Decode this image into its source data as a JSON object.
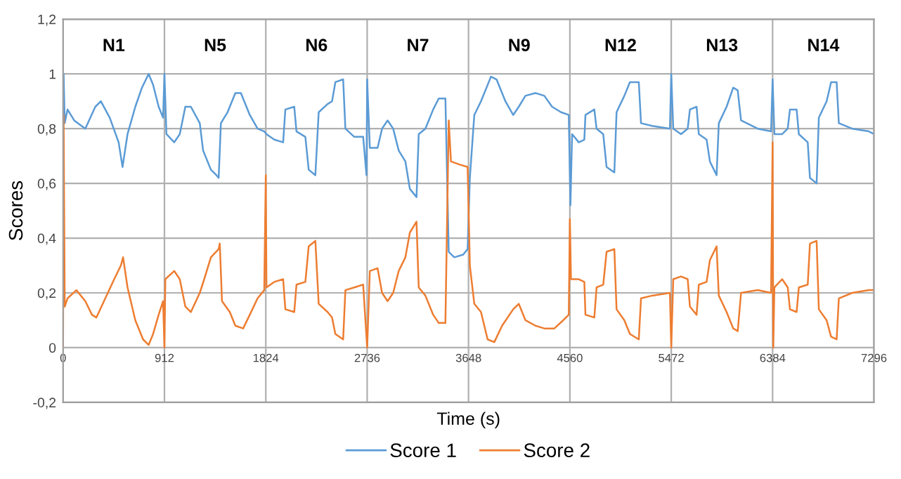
{
  "chart_data": {
    "type": "line",
    "xlabel": "Time (s)",
    "ylabel": "Scores",
    "xlim": [
      0,
      7296
    ],
    "xticks": [
      0,
      912,
      1824,
      2736,
      3648,
      4560,
      5472,
      6384,
      7296
    ],
    "ylim": [
      -0.2,
      1.2
    ],
    "yticks": [
      {
        "value": -0.2,
        "label": "-0,2"
      },
      0,
      {
        "value": 0.2,
        "label": "0,2"
      },
      {
        "value": 0.4,
        "label": "0,4"
      },
      {
        "value": 0.6,
        "label": "0,6"
      },
      {
        "value": 0.8,
        "label": "0,8"
      },
      1,
      {
        "value": 1.2,
        "label": "1,2"
      }
    ],
    "grid": true,
    "legend": "bottom",
    "marker": "none",
    "line_style": "solid",
    "annotations": [
      "N1",
      "N5",
      "N6",
      "N7",
      "N9",
      "N12",
      "N13",
      "N14"
    ],
    "series": [
      {
        "name": "Score 1",
        "color": "#5b9bd5",
        "x": [
          0,
          5,
          15,
          40,
          100,
          200,
          290,
          340,
          420,
          500,
          535,
          580,
          650,
          710,
          770,
          810,
          860,
          900,
          912,
          930,
          1000,
          1050,
          1100,
          1150,
          1230,
          1260,
          1330,
          1380,
          1400,
          1420,
          1480,
          1550,
          1600,
          1680,
          1750,
          1810,
          1830,
          1900,
          1980,
          2000,
          2080,
          2100,
          2180,
          2210,
          2270,
          2300,
          2380,
          2420,
          2450,
          2520,
          2540,
          2620,
          2700,
          2730,
          2736,
          2760,
          2830,
          2870,
          2920,
          2970,
          3020,
          3080,
          3120,
          3180,
          3200,
          3260,
          3330,
          3380,
          3440,
          3470,
          3520,
          3600,
          3640,
          3660,
          3700,
          3760,
          3850,
          3900,
          3980,
          4050,
          4100,
          4160,
          4250,
          4330,
          4400,
          4480,
          4550,
          4565,
          4580,
          4640,
          4690,
          4700,
          4780,
          4800,
          4860,
          4890,
          4960,
          4980,
          5050,
          5100,
          5180,
          5200,
          5300,
          5460,
          5472,
          5490,
          5560,
          5620,
          5640,
          5700,
          5720,
          5790,
          5820,
          5880,
          5900,
          5970,
          6030,
          6070,
          6100,
          6250,
          6370,
          6384,
          6400,
          6470,
          6520,
          6540,
          6600,
          6620,
          6700,
          6720,
          6780,
          6800,
          6870,
          6910,
          6960,
          6980,
          7100,
          7250,
          7296
        ],
        "values": [
          0.85,
          1.0,
          0.82,
          0.87,
          0.83,
          0.8,
          0.88,
          0.9,
          0.84,
          0.75,
          0.66,
          0.78,
          0.88,
          0.95,
          1.0,
          0.96,
          0.88,
          0.84,
          1.0,
          0.78,
          0.75,
          0.78,
          0.88,
          0.88,
          0.82,
          0.72,
          0.65,
          0.63,
          0.62,
          0.82,
          0.86,
          0.93,
          0.93,
          0.85,
          0.8,
          0.79,
          0.78,
          0.76,
          0.75,
          0.87,
          0.88,
          0.79,
          0.77,
          0.65,
          0.63,
          0.86,
          0.89,
          0.9,
          0.97,
          0.98,
          0.8,
          0.77,
          0.77,
          0.63,
          0.98,
          0.73,
          0.73,
          0.8,
          0.83,
          0.8,
          0.72,
          0.68,
          0.58,
          0.55,
          0.78,
          0.8,
          0.87,
          0.91,
          0.91,
          0.35,
          0.33,
          0.34,
          0.36,
          0.62,
          0.85,
          0.9,
          0.99,
          0.98,
          0.9,
          0.85,
          0.88,
          0.92,
          0.93,
          0.92,
          0.88,
          0.86,
          0.85,
          0.52,
          0.78,
          0.75,
          0.76,
          0.85,
          0.87,
          0.8,
          0.78,
          0.66,
          0.64,
          0.86,
          0.92,
          0.97,
          0.97,
          0.82,
          0.81,
          0.8,
          1.0,
          0.8,
          0.78,
          0.8,
          0.87,
          0.88,
          0.78,
          0.76,
          0.68,
          0.63,
          0.82,
          0.88,
          0.95,
          0.94,
          0.83,
          0.8,
          0.79,
          0.98,
          0.78,
          0.78,
          0.8,
          0.87,
          0.87,
          0.78,
          0.75,
          0.62,
          0.6,
          0.84,
          0.9,
          0.97,
          0.97,
          0.82,
          0.8,
          0.79,
          0.78
        ]
      },
      {
        "name": "Score 2",
        "color": "#ed7d31",
        "x": [
          0,
          5,
          15,
          40,
          120,
          200,
          260,
          300,
          380,
          460,
          520,
          540,
          580,
          650,
          720,
          770,
          810,
          860,
          900,
          912,
          920,
          1000,
          1050,
          1100,
          1150,
          1230,
          1270,
          1330,
          1400,
          1410,
          1430,
          1500,
          1550,
          1620,
          1680,
          1750,
          1810,
          1824,
          1830,
          1900,
          1980,
          2000,
          2080,
          2100,
          2180,
          2210,
          2270,
          2300,
          2380,
          2420,
          2450,
          2520,
          2540,
          2620,
          2700,
          2736,
          2760,
          2830,
          2870,
          2920,
          2970,
          3020,
          3080,
          3120,
          3180,
          3200,
          3260,
          3330,
          3380,
          3440,
          3470,
          3490,
          3560,
          3640,
          3660,
          3700,
          3760,
          3820,
          3880,
          3950,
          4050,
          4100,
          4160,
          4250,
          4330,
          4420,
          4500,
          4550,
          4560,
          4570,
          4640,
          4690,
          4700,
          4780,
          4800,
          4860,
          4890,
          4960,
          4980,
          5050,
          5100,
          5180,
          5200,
          5300,
          5460,
          5472,
          5490,
          5560,
          5620,
          5640,
          5700,
          5720,
          5790,
          5820,
          5880,
          5900,
          5970,
          6030,
          6070,
          6100,
          6250,
          6370,
          6384,
          6390,
          6400,
          6470,
          6520,
          6540,
          6600,
          6620,
          6700,
          6720,
          6780,
          6800,
          6870,
          6910,
          6960,
          6980,
          7100,
          7250,
          7296
        ],
        "values": [
          0.0,
          0.85,
          0.15,
          0.18,
          0.21,
          0.17,
          0.12,
          0.11,
          0.18,
          0.25,
          0.3,
          0.33,
          0.22,
          0.1,
          0.03,
          0.01,
          0.05,
          0.12,
          0.17,
          0.0,
          0.25,
          0.28,
          0.25,
          0.15,
          0.13,
          0.2,
          0.25,
          0.33,
          0.36,
          0.38,
          0.17,
          0.13,
          0.08,
          0.07,
          0.12,
          0.18,
          0.21,
          0.63,
          0.22,
          0.24,
          0.25,
          0.14,
          0.13,
          0.23,
          0.24,
          0.37,
          0.39,
          0.16,
          0.13,
          0.11,
          0.05,
          0.03,
          0.21,
          0.22,
          0.23,
          0.0,
          0.28,
          0.29,
          0.2,
          0.17,
          0.2,
          0.28,
          0.33,
          0.42,
          0.46,
          0.22,
          0.19,
          0.12,
          0.09,
          0.09,
          0.83,
          0.68,
          0.67,
          0.66,
          0.3,
          0.16,
          0.13,
          0.03,
          0.02,
          0.08,
          0.14,
          0.16,
          0.1,
          0.08,
          0.07,
          0.07,
          0.1,
          0.12,
          0.47,
          0.25,
          0.25,
          0.24,
          0.12,
          0.11,
          0.22,
          0.23,
          0.35,
          0.36,
          0.14,
          0.1,
          0.05,
          0.03,
          0.18,
          0.19,
          0.2,
          0.0,
          0.25,
          0.26,
          0.25,
          0.15,
          0.12,
          0.23,
          0.24,
          0.32,
          0.37,
          0.19,
          0.13,
          0.07,
          0.06,
          0.2,
          0.21,
          0.2,
          0.75,
          0.0,
          0.22,
          0.25,
          0.22,
          0.14,
          0.13,
          0.22,
          0.23,
          0.38,
          0.39,
          0.14,
          0.1,
          0.04,
          0.03,
          0.18,
          0.2,
          0.21,
          0.21
        ]
      }
    ]
  }
}
